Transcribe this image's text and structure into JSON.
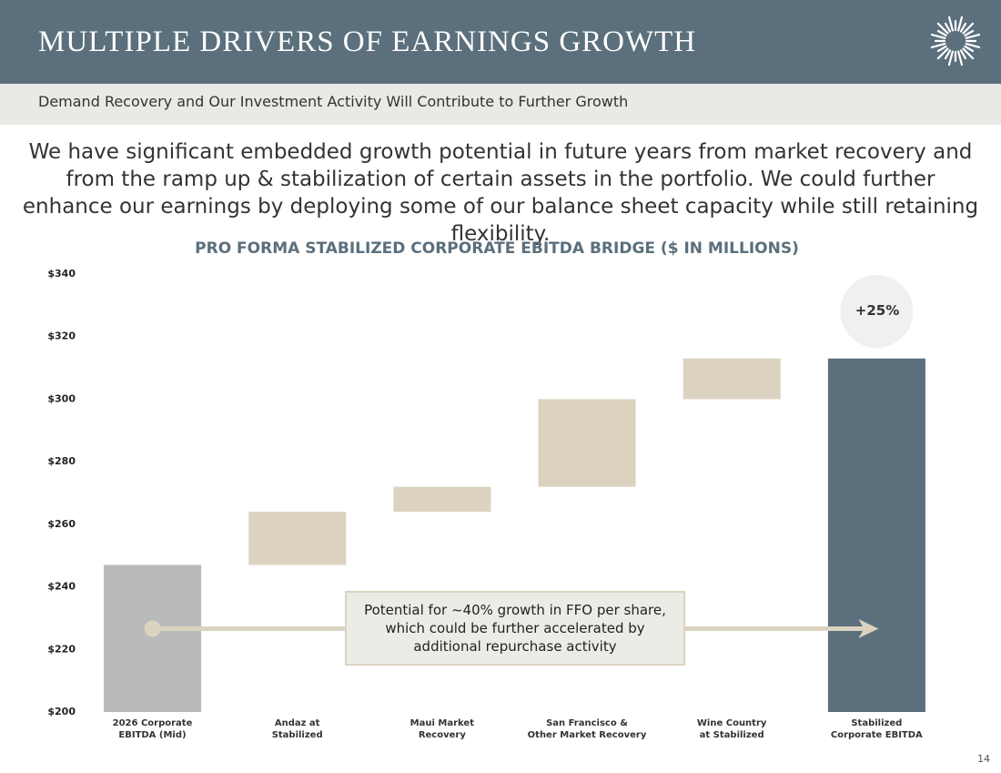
{
  "header": {
    "title": "MULTIPLE DRIVERS OF EARNINGS GROWTH",
    "subtitle": "Demand Recovery and Our Investment Activity Will Contribute to Further Growth"
  },
  "body": "We have significant embedded growth potential in future years from market recovery and from the ramp up & stabilization of certain assets in the portfolio. We could further enhance our earnings by deploying some of our balance sheet capacity while still retaining flexibility.",
  "chart_data": {
    "type": "waterfall",
    "title": "PRO FORMA STABILIZED CORPORATE EBITDA BRIDGE ($ IN MILLIONS)",
    "categories": [
      "2026 Corporate\nEBITDA (Mid)",
      "Andaz at\nStabilized",
      "Maui Market\nRecovery",
      "San Francisco &\nOther Market Recovery",
      "Wine Country\nat Stabilized",
      "Stabilized\nCorporate EBITDA"
    ],
    "values": [
      247,
      17,
      8,
      28,
      13,
      313
    ],
    "colors": [
      "#b9babc",
      "#dbd3c0",
      "#dbd3c0",
      "#dbd3c0",
      "#dbd3c0",
      "#5b6f7c"
    ],
    "ylim": [
      200,
      340
    ],
    "yticks": [
      {
        "value": 200,
        "label": "$200"
      },
      {
        "value": 220,
        "label": "$220"
      },
      {
        "value": 240,
        "label": "$240"
      },
      {
        "value": 260,
        "label": "$260"
      },
      {
        "value": 280,
        "label": "$280"
      },
      {
        "value": 300,
        "label": "$300"
      },
      {
        "value": 320,
        "label": "$320"
      },
      {
        "value": 340,
        "label": "$340"
      }
    ],
    "annotations": [
      "+25%",
      "Potential for ~40% growth in FFO per share,\nwhich could be further accelerated by\nadditional repurchase activity"
    ]
  },
  "page_number": "14"
}
